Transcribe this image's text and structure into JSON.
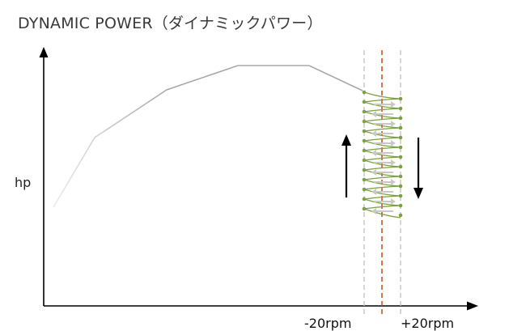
{
  "title": "DYNAMIC POWER（ダイナミックパワー）",
  "y_axis_label": "hp",
  "x_ticks": {
    "minus": "-20rpm",
    "plus": "+20rpm"
  },
  "colors": {
    "axis": "#000000",
    "curve": "#a8a8a8",
    "curve_faded": "#e6e6e6",
    "band_lines": "#bdbdbd",
    "center_line": "#c8561e",
    "oscillation": "#7ba23f",
    "small_arrows": "#c8c8c8",
    "big_arrows": "#000000",
    "title": "#3a3a3a"
  },
  "icons": {
    "up_arrow": "arrow-up-icon",
    "down_arrow": "arrow-down-icon"
  }
}
